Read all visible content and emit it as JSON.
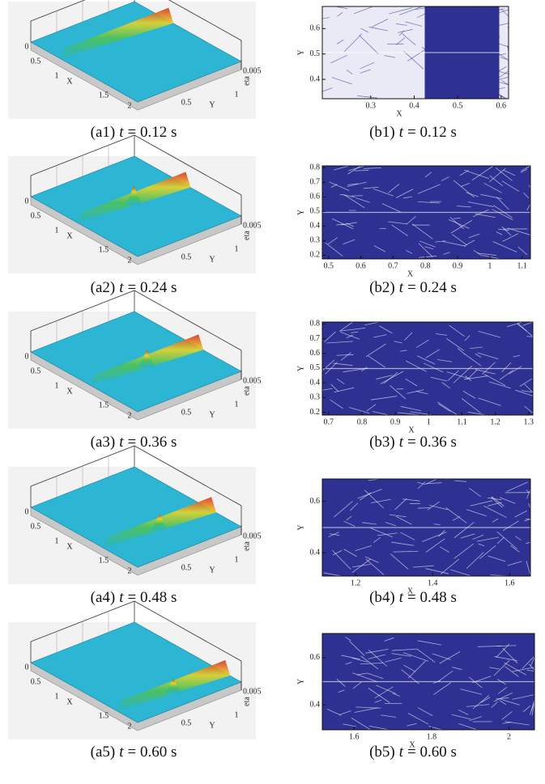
{
  "panels": [
    {
      "left": {
        "caption": {
          "label": "(a1)",
          "symbol": "t",
          "text": "= 0.12 s"
        },
        "x_label": "X",
        "y_label": "Y",
        "z_label": "eta",
        "x_ticks": [
          "0",
          "0.5",
          "1",
          "1.5",
          "2"
        ],
        "y_ticks": [
          "0.5",
          "1"
        ],
        "z_ticks": [
          "0.005"
        ]
      },
      "right": {
        "caption": {
          "label": "(b1)",
          "symbol": "t",
          "text": "= 0.12 s"
        },
        "x_label": "X",
        "y_label": "Y",
        "x_ticks": [
          "0.3",
          "0.4",
          "0.5",
          "0.6"
        ],
        "y_ticks": [
          "0.6",
          "0.5",
          "0.4"
        ]
      }
    },
    {
      "left": {
        "caption": {
          "label": "(a2)",
          "symbol": "t",
          "text": "= 0.24 s"
        },
        "x_label": "X",
        "y_label": "Y",
        "z_label": "eta",
        "x_ticks": [
          "0",
          "0.5",
          "1",
          "1.5",
          "2"
        ],
        "y_ticks": [
          "0.5",
          "1"
        ],
        "z_ticks": [
          "0.005"
        ]
      },
      "right": {
        "caption": {
          "label": "(b2)",
          "symbol": "t",
          "text": "= 0.24 s"
        },
        "x_label": "X",
        "y_label": "Y",
        "x_ticks": [
          "0.5",
          "0.6",
          "0.7",
          "0.8",
          "0.9",
          "1",
          "1.1"
        ],
        "y_ticks": [
          "0.8",
          "0.7",
          "0.6",
          "0.5",
          "0.4",
          "0.3",
          "0.2"
        ]
      }
    },
    {
      "left": {
        "caption": {
          "label": "(a3)",
          "symbol": "t",
          "text": "= 0.36 s"
        },
        "x_label": "X",
        "y_label": "Y",
        "z_label": "eta",
        "x_ticks": [
          "0",
          "0.5",
          "1",
          "1.5",
          "2"
        ],
        "y_ticks": [
          "0.5",
          "1"
        ],
        "z_ticks": [
          "0.005"
        ]
      },
      "right": {
        "caption": {
          "label": "(b3)",
          "symbol": "t",
          "text": "= 0.36 s"
        },
        "x_label": "X",
        "y_label": "Y",
        "x_ticks": [
          "0.7",
          "0.8",
          "0.9",
          "1",
          "1.1",
          "1.2",
          "1.3"
        ],
        "y_ticks": [
          "0.8",
          "0.7",
          "0.6",
          "0.5",
          "0.4",
          "0.3",
          "0.2"
        ]
      }
    },
    {
      "left": {
        "caption": {
          "label": "(a4)",
          "symbol": "t",
          "text": "= 0.48 s"
        },
        "x_label": "X",
        "y_label": "Y",
        "z_label": "eta",
        "x_ticks": [
          "0",
          "0.5",
          "1",
          "1.5",
          "2"
        ],
        "y_ticks": [
          "0.5",
          "1"
        ],
        "z_ticks": [
          "0.005"
        ]
      },
      "right": {
        "caption": {
          "label": "(b4)",
          "symbol": "t",
          "text": "= 0.48 s"
        },
        "x_label": "X",
        "y_label": "Y",
        "x_ticks": [
          "1.2",
          "1.4",
          "1.6"
        ],
        "y_ticks": [
          "0.6",
          "0.4"
        ]
      }
    },
    {
      "left": {
        "caption": {
          "label": "(a5)",
          "symbol": "t",
          "text": "= 0.60 s"
        },
        "x_label": "X",
        "y_label": "Y",
        "z_label": "eta",
        "x_ticks": [
          "0",
          "0.5",
          "1",
          "1.5",
          "2"
        ],
        "y_ticks": [
          "0.5",
          "1"
        ],
        "z_ticks": [
          "0.005"
        ]
      },
      "right": {
        "caption": {
          "label": "(b5)",
          "symbol": "t",
          "text": "= 0.60 s"
        },
        "x_label": "X",
        "y_label": "Y",
        "x_ticks": [
          "1.6",
          "1.8",
          "2"
        ],
        "y_ticks": [
          "0.6",
          "0.4"
        ]
      }
    }
  ]
}
